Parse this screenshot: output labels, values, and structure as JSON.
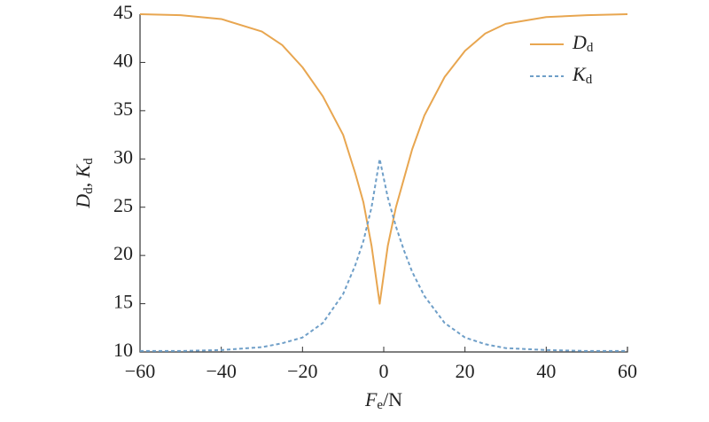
{
  "chart_data": {
    "type": "line",
    "x": [
      -60,
      -50,
      -40,
      -30,
      -25,
      -20,
      -15,
      -10,
      -7,
      -5,
      -3,
      -1,
      1,
      3,
      5,
      7,
      10,
      15,
      20,
      25,
      30,
      40,
      50,
      60
    ],
    "series": [
      {
        "name": "Dd",
        "color": "#e8a650",
        "dash": false,
        "values": [
          45,
          44.9,
          44.5,
          43.2,
          41.8,
          39.5,
          36.5,
          32.5,
          28.5,
          25.5,
          21,
          15,
          21,
          25,
          28,
          31,
          34.5,
          38.5,
          41.2,
          43,
          44,
          44.7,
          44.9,
          45
        ]
      },
      {
        "name": "Kd",
        "color": "#6f9fc8",
        "dash": true,
        "values": [
          10.1,
          10.1,
          10.2,
          10.5,
          10.9,
          11.5,
          13,
          16,
          19,
          21.5,
          25,
          30,
          26,
          23,
          20.5,
          18.3,
          15.8,
          13,
          11.5,
          10.8,
          10.4,
          10.2,
          10.1,
          10.1
        ]
      }
    ],
    "xlabel": [
      {
        "text": "F",
        "style": "italic"
      },
      {
        "text": "e",
        "style": "sub"
      },
      {
        "text": "/N",
        "style": "normal"
      }
    ],
    "ylabel": [
      {
        "text": "D",
        "style": "italic"
      },
      {
        "text": "d",
        "style": "sub"
      },
      {
        "text": ", ",
        "style": "normal"
      },
      {
        "text": "K",
        "style": "italic"
      },
      {
        "text": "d",
        "style": "sub"
      }
    ],
    "xlim": [
      -60,
      60
    ],
    "xticks": [
      {
        "value": -60,
        "label": "−60"
      },
      {
        "value": -40,
        "label": "−40"
      },
      {
        "value": -20,
        "label": "−20"
      },
      0,
      20,
      40,
      60
    ],
    "ylim": [
      10,
      45
    ],
    "yticks": [
      10,
      15,
      20,
      25,
      30,
      35,
      40,
      45
    ],
    "legend": "upper right"
  }
}
